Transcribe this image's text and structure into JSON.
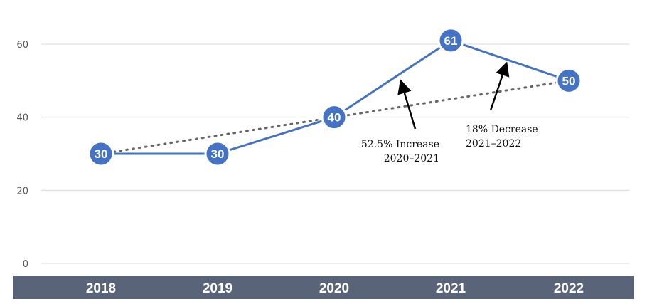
{
  "chart_data": {
    "type": "line",
    "categories": [
      "2018",
      "2019",
      "2020",
      "2021",
      "2022"
    ],
    "series": [
      {
        "values": [
          30,
          30,
          40,
          61,
          50
        ],
        "data_labels": [
          "30",
          "30",
          "40",
          "61",
          "50"
        ]
      }
    ],
    "trendline": {
      "style": "dotted",
      "from": 30,
      "to": 50
    },
    "y_ticks": [
      "0",
      "20",
      "40",
      "60"
    ],
    "ylim": [
      0,
      60
    ],
    "grid": true,
    "annotations": [
      {
        "lines": [
          "52.5% Increase",
          "2020–2021"
        ],
        "points_to": "2021"
      },
      {
        "lines": [
          "18% Decrease",
          "2021–2022"
        ],
        "points_to": "2022"
      }
    ],
    "colors": {
      "line": "#4472c4",
      "marker": "#4472c4",
      "trend": "#666666",
      "axis_band": "#5a6478",
      "grid": "#d9d9d9"
    }
  }
}
